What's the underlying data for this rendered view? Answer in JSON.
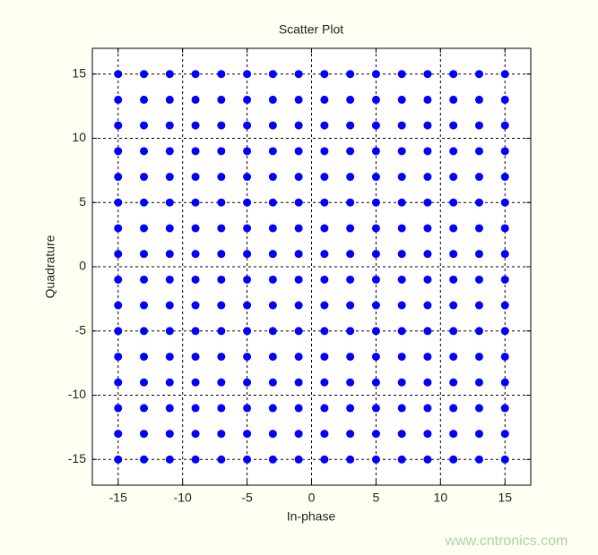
{
  "chart_data": {
    "type": "scatter",
    "title": "Scatter Plot",
    "x_label": "In-phase",
    "y_label": "Quadrature",
    "watermark": "www.cntronics.com",
    "color": "#0000ff",
    "grid": true,
    "xlim": [
      -17,
      17
    ],
    "ylim": [
      -17,
      17
    ],
    "xticks": [
      -15,
      -10,
      -5,
      0,
      5,
      10,
      15
    ],
    "yticks": [
      -15,
      -10,
      -5,
      0,
      5,
      10,
      15
    ],
    "x": [
      -15,
      -13,
      -11,
      -9,
      -7,
      -5,
      -3,
      -1,
      1,
      3,
      5,
      7,
      9,
      11,
      13,
      15,
      -15,
      -13,
      -11,
      -9,
      -7,
      -5,
      -3,
      -1,
      1,
      3,
      5,
      7,
      9,
      11,
      13,
      15,
      -15,
      -13,
      -11,
      -9,
      -7,
      -5,
      -3,
      -1,
      1,
      3,
      5,
      7,
      9,
      11,
      13,
      15,
      -15,
      -13,
      -11,
      -9,
      -7,
      -5,
      -3,
      -1,
      1,
      3,
      5,
      7,
      9,
      11,
      13,
      15,
      -15,
      -13,
      -11,
      -9,
      -7,
      -5,
      -3,
      -1,
      1,
      3,
      5,
      7,
      9,
      11,
      13,
      15,
      -15,
      -13,
      -11,
      -9,
      -7,
      -5,
      -3,
      -1,
      1,
      3,
      5,
      7,
      9,
      11,
      13,
      15,
      -15,
      -13,
      -11,
      -9,
      -7,
      -5,
      -3,
      -1,
      1,
      3,
      5,
      7,
      9,
      11,
      13,
      15,
      -15,
      -13,
      -11,
      -9,
      -7,
      -5,
      -3,
      -1,
      1,
      3,
      5,
      7,
      9,
      11,
      13,
      15,
      -15,
      -13,
      -11,
      -9,
      -7,
      -5,
      -3,
      -1,
      1,
      3,
      5,
      7,
      9,
      11,
      13,
      15,
      -15,
      -13,
      -11,
      -9,
      -7,
      -5,
      -3,
      -1,
      1,
      3,
      5,
      7,
      9,
      11,
      13,
      15,
      -15,
      -13,
      -11,
      -9,
      -7,
      -5,
      -3,
      -1,
      1,
      3,
      5,
      7,
      9,
      11,
      13,
      15,
      -15,
      -13,
      -11,
      -9,
      -7,
      -5,
      -3,
      -1,
      1,
      3,
      5,
      7,
      9,
      11,
      13,
      15,
      -15,
      -13,
      -11,
      -9,
      -7,
      -5,
      -3,
      -1,
      1,
      3,
      5,
      7,
      9,
      11,
      13,
      15,
      -15,
      -13,
      -11,
      -9,
      -7,
      -5,
      -3,
      -1,
      1,
      3,
      5,
      7,
      9,
      11,
      13,
      15,
      -15,
      -13,
      -11,
      -9,
      -7,
      -5,
      -3,
      -1,
      1,
      3,
      5,
      7,
      9,
      11,
      13,
      15,
      -15,
      -13,
      -11,
      -9,
      -7,
      -5,
      -3,
      -1,
      1,
      3,
      5,
      7,
      9,
      11,
      13,
      15
    ],
    "y": [
      15,
      15,
      15,
      15,
      15,
      15,
      15,
      15,
      15,
      15,
      15,
      15,
      15,
      15,
      15,
      15,
      13,
      13,
      13,
      13,
      13,
      13,
      13,
      13,
      13,
      13,
      13,
      13,
      13,
      13,
      13,
      13,
      11,
      11,
      11,
      11,
      11,
      11,
      11,
      11,
      11,
      11,
      11,
      11,
      11,
      11,
      11,
      11,
      9,
      9,
      9,
      9,
      9,
      9,
      9,
      9,
      9,
      9,
      9,
      9,
      9,
      9,
      9,
      9,
      7,
      7,
      7,
      7,
      7,
      7,
      7,
      7,
      7,
      7,
      7,
      7,
      7,
      7,
      7,
      7,
      5,
      5,
      5,
      5,
      5,
      5,
      5,
      5,
      5,
      5,
      5,
      5,
      5,
      5,
      5,
      5,
      3,
      3,
      3,
      3,
      3,
      3,
      3,
      3,
      3,
      3,
      3,
      3,
      3,
      3,
      3,
      3,
      1,
      1,
      1,
      1,
      1,
      1,
      1,
      1,
      1,
      1,
      1,
      1,
      1,
      1,
      1,
      1,
      -1,
      -1,
      -1,
      -1,
      -1,
      -1,
      -1,
      -1,
      -1,
      -1,
      -1,
      -1,
      -1,
      -1,
      -1,
      -1,
      -3,
      -3,
      -3,
      -3,
      -3,
      -3,
      -3,
      -3,
      -3,
      -3,
      -3,
      -3,
      -3,
      -3,
      -3,
      -3,
      -5,
      -5,
      -5,
      -5,
      -5,
      -5,
      -5,
      -5,
      -5,
      -5,
      -5,
      -5,
      -5,
      -5,
      -5,
      -5,
      -7,
      -7,
      -7,
      -7,
      -7,
      -7,
      -7,
      -7,
      -7,
      -7,
      -7,
      -7,
      -7,
      -7,
      -7,
      -7,
      -9,
      -9,
      -9,
      -9,
      -9,
      -9,
      -9,
      -9,
      -9,
      -9,
      -9,
      -9,
      -9,
      -9,
      -9,
      -9,
      -11,
      -11,
      -11,
      -11,
      -11,
      -11,
      -11,
      -11,
      -11,
      -11,
      -11,
      -11,
      -11,
      -11,
      -11,
      -11,
      -13,
      -13,
      -13,
      -13,
      -13,
      -13,
      -13,
      -13,
      -13,
      -13,
      -13,
      -13,
      -13,
      -13,
      -13,
      -13,
      -15,
      -15,
      -15,
      -15,
      -15,
      -15,
      -15,
      -15,
      -15,
      -15,
      -15,
      -15,
      -15,
      -15,
      -15,
      -15
    ]
  }
}
